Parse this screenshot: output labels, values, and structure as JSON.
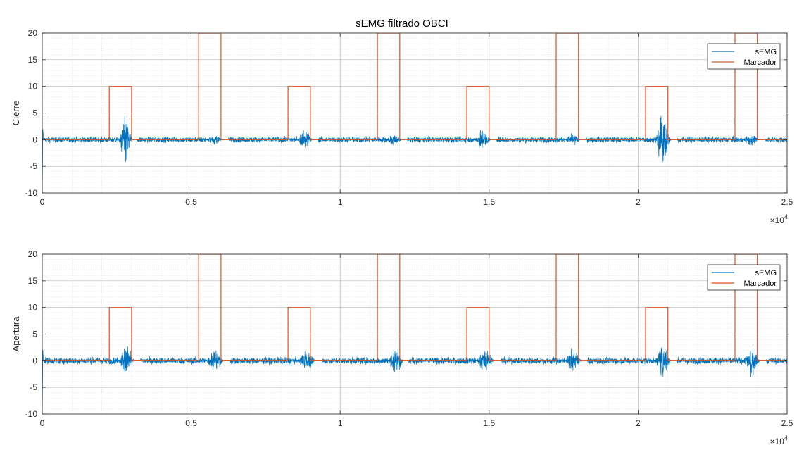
{
  "figure_title": "sEMG filtrado OBCI",
  "colors": {
    "semg": "#0072BD",
    "marker": "#D95319",
    "grid": "#b8b8b8",
    "axes": "#262626"
  },
  "chart_data": [
    {
      "type": "line",
      "ylabel": "Cierre",
      "xlim": [
        0,
        25000
      ],
      "ylim": [
        -10,
        20
      ],
      "x_ticks": [
        0,
        5000,
        10000,
        15000,
        20000,
        25000
      ],
      "x_tick_labels": [
        "0",
        "0.5",
        "1",
        "1.5",
        "2",
        "2.5"
      ],
      "x_exponent_label": "×10",
      "x_exponent_power": "4",
      "y_ticks": [
        -10,
        -5,
        0,
        5,
        10,
        15,
        20
      ],
      "y_tick_labels": [
        "-10",
        "-5",
        "0",
        "5",
        "10",
        "15",
        "20"
      ],
      "grid": true,
      "legend": {
        "location": "top-right",
        "entries": [
          "sEMG",
          "Marcador"
        ]
      },
      "series": [
        {
          "name": "Marcador",
          "kind": "step",
          "baseline": 0,
          "pulses": [
            {
              "start": 2250,
              "end": 3000,
              "value": 10
            },
            {
              "start": 5250,
              "end": 6000,
              "value": 20
            },
            {
              "start": 8250,
              "end": 9000,
              "value": 10
            },
            {
              "start": 11250,
              "end": 12000,
              "value": 20
            },
            {
              "start": 14250,
              "end": 15000,
              "value": 10
            },
            {
              "start": 17250,
              "end": 18000,
              "value": 20
            },
            {
              "start": 20250,
              "end": 21000,
              "value": 10
            },
            {
              "start": 23250,
              "end": 24000,
              "value": 20
            }
          ]
        },
        {
          "name": "sEMG",
          "kind": "noise",
          "baseline_noise": 0.25,
          "bursts": [
            {
              "start": 2550,
              "end": 3200,
              "peak_pos": 4.3,
              "peak_neg": -6.0
            },
            {
              "start": 5500,
              "end": 6250,
              "peak_pos": 1.0,
              "peak_neg": -1.0
            },
            {
              "start": 8550,
              "end": 9250,
              "peak_pos": 2.0,
              "peak_neg": -2.0
            },
            {
              "start": 11550,
              "end": 12250,
              "peak_pos": 1.2,
              "peak_neg": -1.2
            },
            {
              "start": 14500,
              "end": 15250,
              "peak_pos": 2.0,
              "peak_neg": -2.0
            },
            {
              "start": 17550,
              "end": 18250,
              "peak_pos": 1.2,
              "peak_neg": -1.2
            },
            {
              "start": 20550,
              "end": 21300,
              "peak_pos": 4.6,
              "peak_neg": -5.5
            },
            {
              "start": 23500,
              "end": 24250,
              "peak_pos": 1.0,
              "peak_neg": -1.0
            }
          ],
          "start_spike": {
            "at": 0,
            "min": -10,
            "max": 2
          }
        }
      ]
    },
    {
      "type": "line",
      "ylabel": "Apertura",
      "xlim": [
        0,
        25000
      ],
      "ylim": [
        -10,
        20
      ],
      "x_ticks": [
        0,
        5000,
        10000,
        15000,
        20000,
        25000
      ],
      "x_tick_labels": [
        "0",
        "0.5",
        "1",
        "1.5",
        "2",
        "2.5"
      ],
      "x_exponent_label": "×10",
      "x_exponent_power": "4",
      "y_ticks": [
        -10,
        -5,
        0,
        5,
        10,
        15,
        20
      ],
      "y_tick_labels": [
        "-10",
        "-5",
        "0",
        "5",
        "10",
        "15",
        "20"
      ],
      "grid": true,
      "legend": {
        "location": "top-right",
        "entries": [
          "sEMG",
          "Marcador"
        ]
      },
      "series": [
        {
          "name": "Marcador",
          "kind": "step",
          "baseline": 0,
          "pulses": [
            {
              "start": 2250,
              "end": 3000,
              "value": 10
            },
            {
              "start": 5250,
              "end": 6000,
              "value": 20
            },
            {
              "start": 8250,
              "end": 9000,
              "value": 10
            },
            {
              "start": 11250,
              "end": 12000,
              "value": 20
            },
            {
              "start": 14250,
              "end": 15000,
              "value": 10
            },
            {
              "start": 17250,
              "end": 18000,
              "value": 20
            },
            {
              "start": 20250,
              "end": 21000,
              "value": 10
            },
            {
              "start": 23250,
              "end": 24000,
              "value": 20
            }
          ]
        },
        {
          "name": "sEMG",
          "kind": "noise",
          "baseline_noise": 0.3,
          "bursts": [
            {
              "start": 2550,
              "end": 3300,
              "peak_pos": 3.2,
              "peak_neg": -2.8
            },
            {
              "start": 5500,
              "end": 6300,
              "peak_pos": 2.0,
              "peak_neg": -2.0
            },
            {
              "start": 8550,
              "end": 9400,
              "peak_pos": 2.0,
              "peak_neg": -2.0
            },
            {
              "start": 11600,
              "end": 12300,
              "peak_pos": 2.5,
              "peak_neg": -2.8
            },
            {
              "start": 14550,
              "end": 15400,
              "peak_pos": 2.0,
              "peak_neg": -2.0
            },
            {
              "start": 17550,
              "end": 18300,
              "peak_pos": 2.5,
              "peak_neg": -2.5
            },
            {
              "start": 20550,
              "end": 21300,
              "peak_pos": 3.6,
              "peak_neg": -3.0
            },
            {
              "start": 23500,
              "end": 24300,
              "peak_pos": 2.5,
              "peak_neg": -3.0
            }
          ],
          "start_spike": {
            "at": 0,
            "min": -10,
            "max": 2
          }
        }
      ]
    }
  ]
}
